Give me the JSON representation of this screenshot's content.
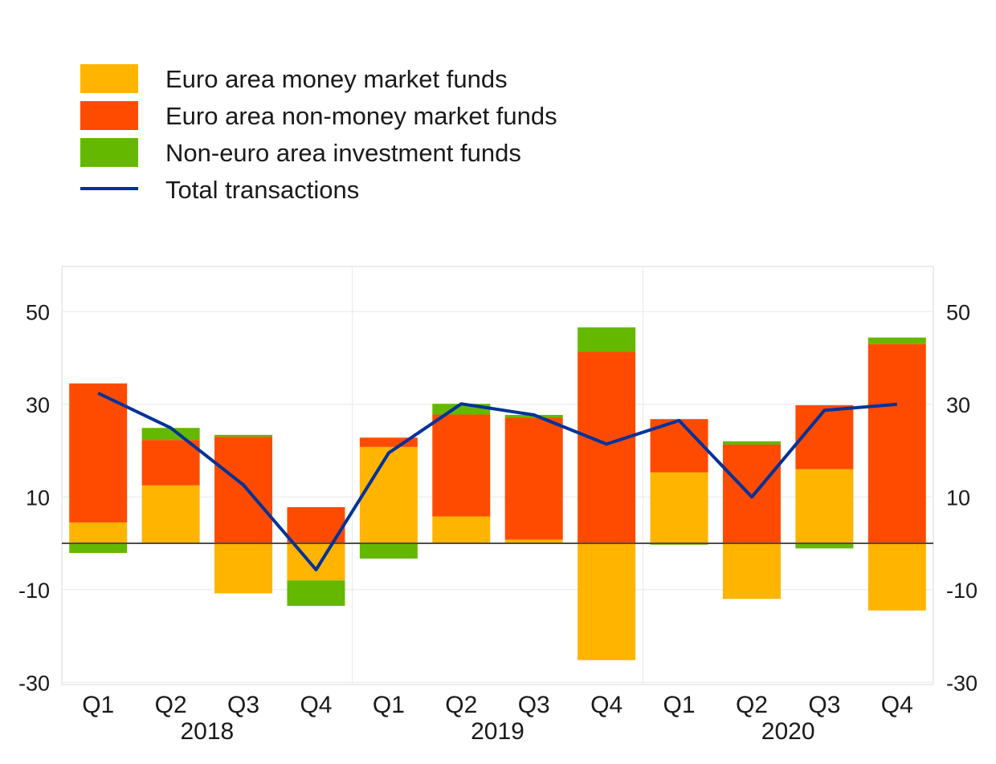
{
  "chart_data": {
    "type": "bar",
    "stacked": true,
    "categories": [
      "Q1",
      "Q2",
      "Q3",
      "Q4",
      "Q1",
      "Q2",
      "Q3",
      "Q4",
      "Q1",
      "Q2",
      "Q3",
      "Q4"
    ],
    "year_groups": [
      {
        "label": "2018",
        "start": 0,
        "end": 3
      },
      {
        "label": "2019",
        "start": 4,
        "end": 7
      },
      {
        "label": "2020",
        "start": 8,
        "end": 11
      }
    ],
    "series": [
      {
        "name": "Euro area money market funds",
        "type": "bar",
        "color": "#FFB400",
        "values": [
          4.5,
          12.5,
          -10.8,
          -8.0,
          20.8,
          5.8,
          0.8,
          -25.2,
          15.3,
          -12.0,
          16.0,
          -14.5
        ]
      },
      {
        "name": "Euro area non-money market funds",
        "type": "bar",
        "color": "#FF4B00",
        "values": [
          30.0,
          9.8,
          23.0,
          7.8,
          2.0,
          22.0,
          26.3,
          41.3,
          11.5,
          21.3,
          13.8,
          43.0
        ]
      },
      {
        "name": "Non-euro area investment funds",
        "type": "bar",
        "color": "#65B800",
        "values": [
          -2.1,
          2.6,
          0.4,
          -5.5,
          -3.3,
          2.3,
          0.6,
          5.3,
          -0.3,
          0.7,
          -1.1,
          1.4
        ]
      },
      {
        "name": "Total transactions",
        "type": "line",
        "color": "#003299",
        "values": [
          32.4,
          24.9,
          12.6,
          -5.7,
          19.5,
          30.1,
          27.7,
          21.4,
          26.5,
          10.0,
          28.7,
          30.0
        ]
      }
    ],
    "y_ticks": [
      50,
      30,
      10,
      -10,
      -30
    ],
    "ylim": [
      -30,
      60
    ],
    "title": "",
    "xlabel": "",
    "ylabel": "",
    "legend": "top-left"
  }
}
